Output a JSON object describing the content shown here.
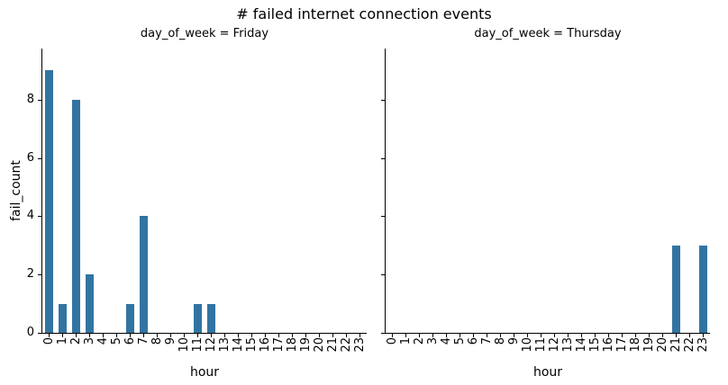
{
  "title": "# failed internet connection events",
  "colors": {
    "bar": "#3274a1",
    "axis": "#000000",
    "text": "#000000",
    "background": "#ffffff"
  },
  "chart_data": {
    "type": "bar",
    "title": "# failed internet connection events",
    "faceted_by": "day_of_week",
    "xlabel": "hour",
    "ylabel": "fail_count",
    "categories": [
      "0",
      "1",
      "2",
      "3",
      "4",
      "5",
      "6",
      "7",
      "8",
      "9",
      "10",
      "11",
      "12",
      "13",
      "14",
      "15",
      "16",
      "17",
      "18",
      "19",
      "20",
      "21",
      "22",
      "23"
    ],
    "yticks": [
      0,
      2,
      4,
      6,
      8
    ],
    "ylim": [
      0,
      9.75
    ],
    "grid": false,
    "legend": false,
    "facets": [
      {
        "title": "day_of_week = Friday",
        "values": [
          9,
          1,
          8,
          2,
          0,
          0,
          1,
          4,
          0,
          0,
          0,
          1,
          1,
          0,
          0,
          0,
          0,
          0,
          0,
          0,
          0,
          0,
          0,
          0
        ]
      },
      {
        "title": "day_of_week = Thursday",
        "values": [
          0,
          0,
          0,
          0,
          0,
          0,
          0,
          0,
          0,
          0,
          0,
          0,
          0,
          0,
          0,
          0,
          0,
          0,
          0,
          0,
          0,
          3,
          0,
          3
        ]
      }
    ]
  }
}
